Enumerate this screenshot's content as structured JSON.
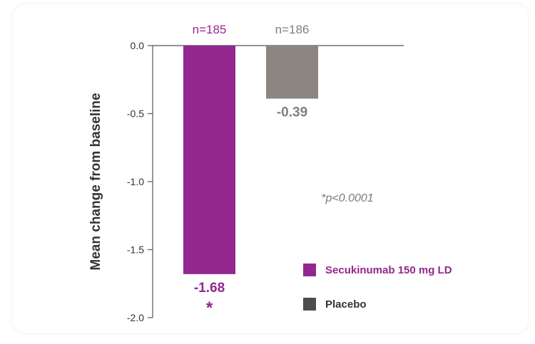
{
  "chart_data": {
    "type": "bar",
    "categories": [
      "Secukinumab 150 mg LD",
      "Placebo"
    ],
    "values": [
      -1.68,
      -0.39
    ],
    "value_labels": [
      "-1.68",
      "-0.39"
    ],
    "n_labels": [
      "n=185",
      "n=186"
    ],
    "significance": [
      "*",
      ""
    ],
    "colors": [
      "#93278f",
      "#8c8582"
    ],
    "label_colors": [
      "#93278f",
      "#7f7f7f"
    ],
    "ylabel": "Mean change from baseline",
    "ylim": [
      -2.0,
      0.0
    ],
    "yticks": [
      0.0,
      -0.5,
      -1.0,
      -1.5,
      -2.0
    ],
    "ytick_labels": [
      "0.0",
      "-0.5",
      "-1.0",
      "-1.5",
      "-2.0"
    ],
    "annotation": "*p<0.0001",
    "legend": {
      "placement": "bottom-right",
      "entries": [
        {
          "label": "Secukinumab 150 mg LD",
          "color": "#93278f",
          "text_color": "#93278f"
        },
        {
          "label": "Placebo",
          "color": "#4d4d4d",
          "text_color": "#333333"
        }
      ]
    },
    "grid": false
  }
}
